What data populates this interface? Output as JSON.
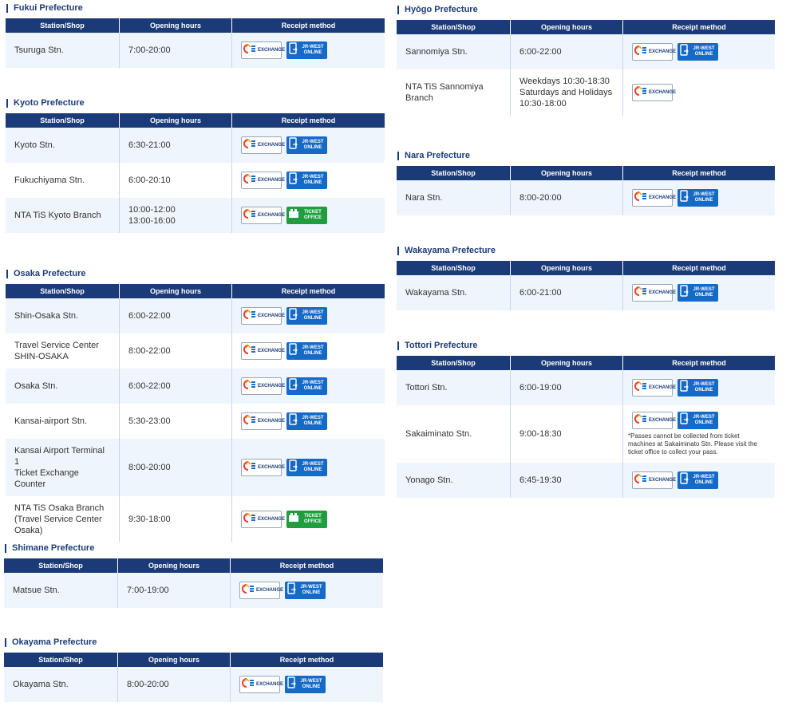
{
  "table_headers": [
    "Station/Shop",
    "Opening hours",
    "Receipt method"
  ],
  "sections": [
    {
      "title": "Fukui Prefecture",
      "rows": [
        {
          "station": "Tsuruga Stn.",
          "hours": "7:00-20:00",
          "receipt": [
            {
              "text": "EXCHANGE",
              "color": "#ffffff"
            },
            {
              "text": "JR-WEST ONLINE",
              "color": "#1569c7"
            }
          ]
        }
      ]
    },
    {
      "title": "Kyoto Prefecture",
      "rows": [
        {
          "station": "Kyoto Stn.",
          "hours": "6:30-21:00",
          "receipt": [
            {
              "text": "EXCHANGE",
              "color": "#ffffff"
            },
            {
              "text": "JR-WEST ONLINE",
              "color": "#1569c7"
            }
          ]
        },
        {
          "station": "Fukuchiyama Stn.",
          "hours": "6:00-20:10",
          "receipt": [
            {
              "text": "EXCHANGE",
              "color": "#ffffff"
            },
            {
              "text": "JR-WEST ONLINE",
              "color": "#1569c7"
            }
          ]
        },
        {
          "station": "NTA TiS Kyoto Branch",
          "hours": "10:00-12:00\n13:00-16:00",
          "receipt": [
            {
              "text": "EXCHANGE",
              "color": "#ffffff"
            },
            {
              "text": "TICKET OFFICE",
              "color": "#1e9e3e"
            }
          ]
        }
      ]
    },
    {
      "title": "Osaka Prefecture",
      "rows": [
        {
          "station": "Shin-Osaka Stn.",
          "hours": "6:00-22:00",
          "receipt": [
            {
              "text": "EXCHANGE",
              "color": "#ffffff"
            },
            {
              "text": "JR-WEST ONLINE",
              "color": "#1569c7"
            }
          ]
        },
        {
          "station": "Travel Service Center\nSHIN-OSAKA",
          "hours": "8:00-22:00",
          "receipt": [
            {
              "text": "EXCHANGE",
              "color": "#ffffff"
            },
            {
              "text": "JR-WEST ONLINE",
              "color": "#1569c7"
            }
          ]
        },
        {
          "station": "Osaka Stn.",
          "hours": "6:00-22:00",
          "receipt": [
            {
              "text": "EXCHANGE",
              "color": "#ffffff"
            },
            {
              "text": "JR-WEST ONLINE",
              "color": "#1569c7"
            }
          ]
        },
        {
          "station": "Kansai-airport Stn.",
          "hours": "5:30-23:00",
          "receipt": [
            {
              "text": "EXCHANGE",
              "color": "#ffffff"
            },
            {
              "text": "JR-WEST ONLINE",
              "color": "#1569c7"
            }
          ]
        },
        {
          "station": "Kansai Airport Terminal 1\nTicket Exchange Counter",
          "hours": "8:00-20:00",
          "receipt": [
            {
              "text": "EXCHANGE",
              "color": "#ffffff"
            },
            {
              "text": "JR-WEST ONLINE",
              "color": "#1569c7"
            }
          ]
        },
        {
          "station": "NTA TiS Osaka Branch\n(Travel Service Center\nOsaka)",
          "hours": "9:30-18:00",
          "receipt": [
            {
              "text": "EXCHANGE",
              "color": "#ffffff"
            },
            {
              "text": "TICKET OFFICE",
              "color": "#1e9e3e"
            }
          ]
        }
      ]
    },
    {
      "title": "Shimane Prefecture",
      "rows": [
        {
          "station": "Matsue Stn.",
          "hours": "7:00-19:00",
          "receipt": [
            {
              "text": "EXCHANGE",
              "color": "#ffffff"
            },
            {
              "text": "JR-WEST ONLINE",
              "color": "#1569c7"
            }
          ]
        }
      ]
    },
    {
      "title": "Okayama Prefecture",
      "rows": [
        {
          "station": "Okayama Stn.",
          "hours": "8:00-20:00",
          "receipt": [
            {
              "text": "EXCHANGE",
              "color": "#ffffff"
            },
            {
              "text": "JR-WEST ONLINE",
              "color": "#1569c7"
            }
          ]
        }
      ]
    },
    {
      "title": "Hyōgo Prefecture",
      "rows": [
        {
          "station": "Sannomiya Stn.",
          "hours": "6:00-22:00",
          "receipt": [
            {
              "text": "EXCHANGE",
              "color": "#ffffff"
            },
            {
              "text": "JR-WEST ONLINE",
              "color": "#1569c7"
            }
          ]
        },
        {
          "station": "NTA TiS Sannomiya\nBranch",
          "hours": "Weekdays 10:30-18:30\nSaturdays and Holidays\n10:30-18:00",
          "receipt": [
            {
              "text": "EXCHANGE",
              "color": "#ffffff"
            }
          ]
        }
      ]
    },
    {
      "title": "Nara Prefecture",
      "rows": [
        {
          "station": "Nara Stn.",
          "hours": "8:00-20:00",
          "receipt": [
            {
              "text": "EXCHANGE",
              "color": "#ffffff"
            },
            {
              "text": "JR-WEST ONLINE",
              "color": "#1569c7"
            }
          ]
        }
      ]
    },
    {
      "title": "Wakayama Prefecture",
      "rows": [
        {
          "station": "Wakayama Stn.",
          "hours": "6:00-21:00",
          "receipt": [
            {
              "text": "EXCHANGE",
              "color": "#ffffff"
            },
            {
              "text": "JR-WEST ONLINE",
              "color": "#1569c7"
            }
          ]
        }
      ]
    },
    {
      "title": "Tottori Prefecture",
      "rows": [
        {
          "station": "Tottori Stn.",
          "hours": "6:00-19:00",
          "receipt": [
            {
              "text": "EXCHANGE",
              "color": "#ffffff"
            },
            {
              "text": "JR-WEST ONLINE",
              "color": "#1569c7"
            }
          ]
        },
        {
          "station": "Sakaiminato Stn.",
          "hours": "9:00-18:30",
          "receipt": [
            {
              "text": "EXCHANGE",
              "color": "#ffffff"
            },
            {
              "text": "JR-WEST ONLINE",
              "color": "#1569c7"
            }
          ],
          "note": "*Passes cannot be collected from ticket machines at Sakaiminato Stn. Please visit the ticket office to collect your pass."
        },
        {
          "station": "Yonago Stn.",
          "hours": "6:45-19:30",
          "receipt": [
            {
              "text": "EXCHANGE",
              "color": "#ffffff"
            },
            {
              "text": "JR-WEST ONLINE",
              "color": "#1569c7"
            }
          ]
        }
      ]
    }
  ]
}
